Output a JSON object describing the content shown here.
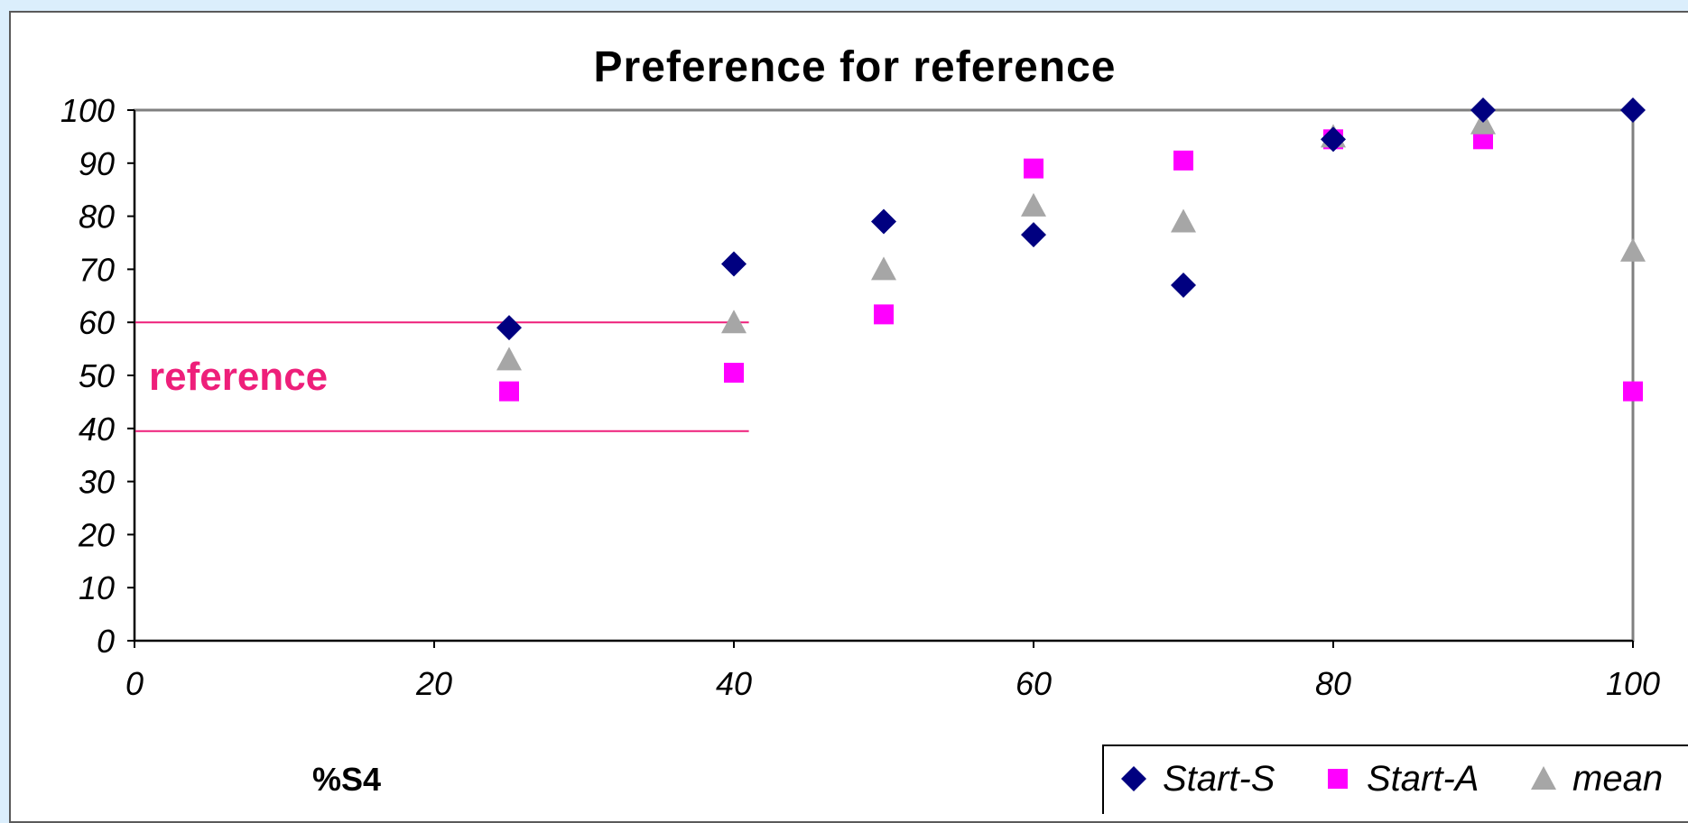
{
  "chart_data": {
    "type": "scatter",
    "title": "Preference for reference",
    "xlabel": "%S4",
    "ylabel": "",
    "xlim": [
      0,
      100
    ],
    "ylim": [
      0,
      100
    ],
    "xticks": [
      0,
      20,
      40,
      60,
      80,
      100
    ],
    "yticks": [
      0,
      10,
      20,
      30,
      40,
      50,
      60,
      70,
      80,
      90,
      100
    ],
    "grid": false,
    "legend_position": "bottom-right",
    "series": [
      {
        "name": "Start-S",
        "marker": "diamond",
        "color": "#000080",
        "points": [
          [
            25,
            59
          ],
          [
            40,
            71
          ],
          [
            50,
            79
          ],
          [
            60,
            76.5
          ],
          [
            70,
            67
          ],
          [
            80,
            94.5
          ],
          [
            90,
            100
          ],
          [
            100,
            100
          ]
        ]
      },
      {
        "name": "Start-A",
        "marker": "square",
        "color": "#ff00ff",
        "points": [
          [
            25,
            47
          ],
          [
            40,
            50.5
          ],
          [
            50,
            61.5
          ],
          [
            60,
            89
          ],
          [
            70,
            90.5
          ],
          [
            80,
            94.5
          ],
          [
            90,
            94.5
          ],
          [
            100,
            47
          ]
        ]
      },
      {
        "name": "mean",
        "marker": "triangle",
        "color": "#a6a6a6",
        "points": [
          [
            25,
            53
          ],
          [
            40,
            60
          ],
          [
            50,
            70
          ],
          [
            60,
            82
          ],
          [
            70,
            79
          ],
          [
            80,
            95
          ],
          [
            90,
            97.5
          ],
          [
            100,
            73.5
          ]
        ]
      }
    ],
    "reference_band": {
      "label": "reference",
      "color": "#ee1f7a",
      "lines_y": [
        60,
        39.5
      ],
      "x_range": [
        0,
        41
      ]
    }
  }
}
